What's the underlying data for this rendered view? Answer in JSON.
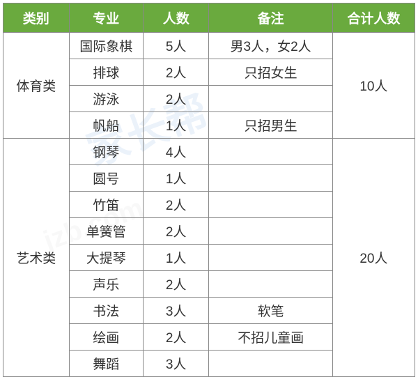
{
  "header": {
    "category": "类别",
    "major": "专业",
    "count": "人数",
    "note": "备注",
    "total": "合计人数"
  },
  "groups": [
    {
      "category": "体育类",
      "total": "10人",
      "rows": [
        {
          "major": "国际象棋",
          "count": "5人",
          "note": "男3人，女2人"
        },
        {
          "major": "排球",
          "count": "2人",
          "note": "只招女生"
        },
        {
          "major": "游泳",
          "count": "2人",
          "note": ""
        },
        {
          "major": "帆船",
          "count": "1人",
          "note": "只招男生"
        }
      ]
    },
    {
      "category": "艺术类",
      "total": "20人",
      "rows": [
        {
          "major": "钢琴",
          "count": "4人",
          "note": ""
        },
        {
          "major": "圆号",
          "count": "1人",
          "note": ""
        },
        {
          "major": "竹笛",
          "count": "2人",
          "note": ""
        },
        {
          "major": "单簧管",
          "count": "2人",
          "note": ""
        },
        {
          "major": "大提琴",
          "count": "1人",
          "note": ""
        },
        {
          "major": "声乐",
          "count": "2人",
          "note": ""
        },
        {
          "major": "书法",
          "count": "3人",
          "note": "软笔"
        },
        {
          "major": "绘画",
          "count": "2人",
          "note": "不招儿童画"
        },
        {
          "major": "舞蹈",
          "count": "3人",
          "note": ""
        }
      ]
    }
  ],
  "style": {
    "header_bg": "#6aaa3e",
    "header_color": "#ffffff",
    "border_color": "#888888",
    "font_size": 19,
    "column_widths": {
      "category": "16%",
      "major": "18%",
      "count": "16%",
      "note": "30%",
      "total": "20%"
    }
  }
}
